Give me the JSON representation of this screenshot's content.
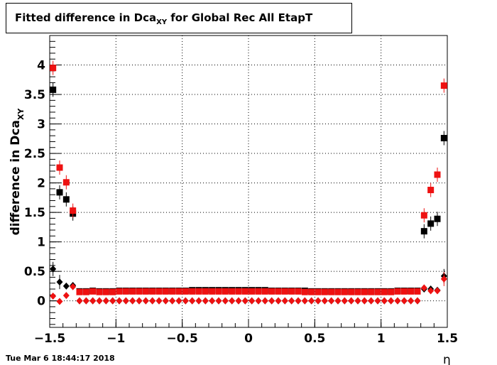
{
  "title": {
    "prefix": "Fitted difference in Dca",
    "subscript": "XY",
    "suffix": " for Global Rec All EtapT"
  },
  "timestamp": "Tue Mar  6 18:44:17 2018",
  "colors": {
    "black": "#000000",
    "red": "#ee1111",
    "grid": "#000000"
  },
  "chart_data": {
    "type": "scatter",
    "xlabel": "η",
    "ylabel_prefix": "difference in Dca",
    "ylabel_subscript": "XY",
    "xlim": [
      -1.5,
      1.5
    ],
    "ylim": [
      -0.45,
      4.5
    ],
    "grid": true,
    "x_ticks": [
      -1.5,
      -1,
      -0.5,
      0,
      0.5,
      1,
      1.5
    ],
    "x_tick_labels": [
      "−1.5",
      "−1",
      "−0.5",
      "0",
      "0.5",
      "1",
      "1.5"
    ],
    "y_ticks": [
      0,
      0.5,
      1,
      1.5,
      2,
      2.5,
      3,
      3.5,
      4
    ],
    "y_tick_labels": [
      "0",
      "0.5",
      "1",
      "1.5",
      "2",
      "2.5",
      "3",
      "3.5",
      "4"
    ],
    "series": [
      {
        "marker": "square",
        "color": "#000000",
        "x": [
          -1.475,
          -1.425,
          -1.375,
          -1.325,
          -1.275,
          -1.225,
          -1.175,
          -1.125,
          -1.075,
          -1.025,
          -0.975,
          -0.925,
          -0.875,
          -0.825,
          -0.775,
          -0.725,
          -0.675,
          -0.625,
          -0.575,
          -0.525,
          -0.475,
          -0.425,
          -0.375,
          -0.325,
          -0.275,
          -0.225,
          -0.175,
          -0.125,
          -0.075,
          -0.025,
          0.025,
          0.075,
          0.125,
          0.175,
          0.225,
          0.275,
          0.325,
          0.375,
          0.425,
          0.475,
          0.525,
          0.575,
          0.625,
          0.675,
          0.725,
          0.775,
          0.825,
          0.875,
          0.925,
          0.975,
          1.025,
          1.075,
          1.125,
          1.175,
          1.225,
          1.275,
          1.325,
          1.375,
          1.425,
          1.475
        ],
        "y": [
          3.58,
          1.84,
          1.72,
          1.48,
          0.16,
          0.16,
          0.17,
          0.16,
          0.16,
          0.16,
          0.17,
          0.17,
          0.17,
          0.17,
          0.17,
          0.17,
          0.17,
          0.17,
          0.17,
          0.17,
          0.17,
          0.18,
          0.18,
          0.18,
          0.18,
          0.18,
          0.18,
          0.18,
          0.18,
          0.18,
          0.18,
          0.18,
          0.18,
          0.17,
          0.17,
          0.17,
          0.17,
          0.17,
          0.17,
          0.16,
          0.16,
          0.16,
          0.16,
          0.16,
          0.16,
          0.16,
          0.16,
          0.16,
          0.16,
          0.16,
          0.16,
          0.16,
          0.17,
          0.17,
          0.17,
          0.17,
          1.18,
          1.31,
          1.39,
          2.76
        ]
      },
      {
        "marker": "square",
        "color": "#ee1111",
        "x": [
          -1.475,
          -1.425,
          -1.375,
          -1.325,
          -1.275,
          -1.225,
          -1.175,
          -1.125,
          -1.075,
          -1.025,
          -0.975,
          -0.925,
          -0.875,
          -0.825,
          -0.775,
          -0.725,
          -0.675,
          -0.625,
          -0.575,
          -0.525,
          -0.475,
          -0.425,
          -0.375,
          -0.325,
          -0.275,
          -0.225,
          -0.175,
          -0.125,
          -0.075,
          -0.025,
          0.025,
          0.075,
          0.125,
          0.175,
          0.225,
          0.275,
          0.325,
          0.375,
          0.425,
          0.475,
          0.525,
          0.575,
          0.625,
          0.675,
          0.725,
          0.775,
          0.825,
          0.875,
          0.925,
          0.975,
          1.025,
          1.075,
          1.125,
          1.175,
          1.225,
          1.275,
          1.325,
          1.375,
          1.425,
          1.475
        ],
        "y": [
          3.95,
          2.26,
          2.01,
          1.53,
          0.15,
          0.15,
          0.16,
          0.15,
          0.15,
          0.15,
          0.16,
          0.16,
          0.16,
          0.16,
          0.16,
          0.16,
          0.16,
          0.16,
          0.16,
          0.16,
          0.16,
          0.16,
          0.16,
          0.16,
          0.16,
          0.16,
          0.16,
          0.16,
          0.16,
          0.16,
          0.16,
          0.16,
          0.16,
          0.16,
          0.16,
          0.16,
          0.16,
          0.16,
          0.15,
          0.15,
          0.15,
          0.15,
          0.15,
          0.15,
          0.15,
          0.15,
          0.15,
          0.15,
          0.15,
          0.15,
          0.15,
          0.15,
          0.16,
          0.16,
          0.16,
          0.16,
          1.45,
          1.88,
          2.14,
          3.65
        ]
      },
      {
        "marker": "diamond",
        "color": "#000000",
        "x": [
          -1.475,
          -1.425,
          -1.375,
          -1.325,
          -1.275,
          -1.225,
          -1.175,
          -1.125,
          -1.075,
          -1.025,
          -0.975,
          -0.925,
          -0.875,
          -0.825,
          -0.775,
          -0.725,
          -0.675,
          -0.625,
          -0.575,
          -0.525,
          -0.475,
          -0.425,
          -0.375,
          -0.325,
          -0.275,
          -0.225,
          -0.175,
          -0.125,
          -0.075,
          -0.025,
          0.025,
          0.075,
          0.125,
          0.175,
          0.225,
          0.275,
          0.325,
          0.375,
          0.425,
          0.475,
          0.525,
          0.575,
          0.625,
          0.675,
          0.725,
          0.775,
          0.825,
          0.875,
          0.925,
          0.975,
          1.025,
          1.075,
          1.125,
          1.175,
          1.225,
          1.275,
          1.325,
          1.375,
          1.425,
          1.475
        ],
        "y": [
          0.54,
          0.32,
          0.25,
          0.26,
          0.0,
          0.0,
          0.0,
          0.0,
          0.0,
          0.0,
          0.0,
          0.0,
          0.0,
          0.0,
          0.0,
          0.0,
          0.0,
          0.0,
          0.0,
          0.0,
          0.0,
          0.0,
          0.0,
          0.0,
          0.0,
          0.0,
          0.0,
          0.0,
          0.0,
          0.0,
          0.0,
          0.0,
          0.0,
          0.0,
          0.0,
          0.0,
          0.0,
          0.0,
          0.0,
          0.0,
          0.0,
          0.0,
          0.0,
          0.0,
          0.0,
          0.0,
          0.0,
          0.0,
          0.0,
          0.0,
          0.0,
          0.0,
          0.0,
          0.0,
          0.0,
          0.0,
          0.2,
          0.2,
          0.18,
          0.42
        ]
      },
      {
        "marker": "diamond",
        "color": "#ee1111",
        "x": [
          -1.475,
          -1.425,
          -1.375,
          -1.325,
          -1.275,
          -1.225,
          -1.175,
          -1.125,
          -1.075,
          -1.025,
          -0.975,
          -0.925,
          -0.875,
          -0.825,
          -0.775,
          -0.725,
          -0.675,
          -0.625,
          -0.575,
          -0.525,
          -0.475,
          -0.425,
          -0.375,
          -0.325,
          -0.275,
          -0.225,
          -0.175,
          -0.125,
          -0.075,
          -0.025,
          0.025,
          0.075,
          0.125,
          0.175,
          0.225,
          0.275,
          0.325,
          0.375,
          0.425,
          0.475,
          0.525,
          0.575,
          0.625,
          0.675,
          0.725,
          0.775,
          0.825,
          0.875,
          0.925,
          0.975,
          1.025,
          1.075,
          1.125,
          1.175,
          1.225,
          1.275,
          1.325,
          1.375,
          1.425,
          1.475
        ],
        "y": [
          0.08,
          -0.01,
          0.09,
          0.24,
          0.0,
          0.0,
          0.0,
          0.0,
          0.0,
          0.0,
          0.0,
          0.0,
          0.0,
          0.0,
          0.0,
          0.0,
          0.0,
          0.0,
          0.0,
          0.0,
          0.0,
          0.0,
          0.0,
          0.0,
          0.0,
          0.0,
          0.0,
          0.0,
          0.0,
          0.0,
          0.0,
          0.0,
          0.0,
          0.0,
          0.0,
          0.0,
          0.0,
          0.0,
          0.0,
          0.0,
          0.0,
          0.0,
          0.0,
          0.0,
          0.0,
          0.0,
          0.0,
          0.0,
          0.0,
          0.0,
          0.0,
          0.0,
          0.0,
          0.0,
          0.0,
          0.0,
          0.22,
          0.17,
          0.17,
          0.37
        ]
      }
    ]
  }
}
